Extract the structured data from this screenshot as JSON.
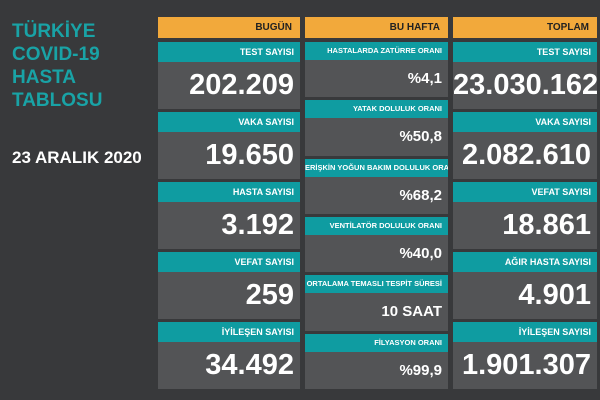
{
  "title": [
    "TÜRKİYE",
    "COVID-19",
    "HASTA",
    "TABLOSU"
  ],
  "date": "23 ARALIK 2020",
  "columns": [
    {
      "header": "BUGÜN",
      "items": [
        {
          "label": "TEST SAYISI",
          "value": "202.209"
        },
        {
          "label": "VAKA SAYISI",
          "value": "19.650"
        },
        {
          "label": "HASTA SAYISI",
          "value": "3.192"
        },
        {
          "label": "VEFAT SAYISI",
          "value": "259"
        },
        {
          "label": "İYİLEŞEN SAYISI",
          "value": "34.492"
        }
      ]
    },
    {
      "header": "BU HAFTA",
      "items": [
        {
          "label": "HASTALARDA ZATÜRRE ORANI",
          "value": "%4,1"
        },
        {
          "label": "YATAK DOLULUK ORANI",
          "value": "%50,8"
        },
        {
          "label": "ERİŞKİN YOĞUN BAKIM DOLULUK ORANI",
          "value": "%68,2"
        },
        {
          "label": "VENTİLATÖR DOLULUK ORANI",
          "value": "%40,0"
        },
        {
          "label": "ORTALAMA TEMASLI TESPİT SÜRESİ",
          "value": "10 SAAT"
        },
        {
          "label": "FİLYASYON ORANI",
          "value": "%99,9"
        }
      ]
    },
    {
      "header": "TOPLAM",
      "items": [
        {
          "label": "TEST SAYISI",
          "value": "23.030.162"
        },
        {
          "label": "VAKA SAYISI",
          "value": "2.082.610"
        },
        {
          "label": "VEFAT SAYISI",
          "value": "18.861"
        },
        {
          "label": "AĞIR HASTA SAYISI",
          "value": "4.901"
        },
        {
          "label": "İYİLEŞEN SAYISI",
          "value": "1.901.307"
        }
      ]
    }
  ]
}
